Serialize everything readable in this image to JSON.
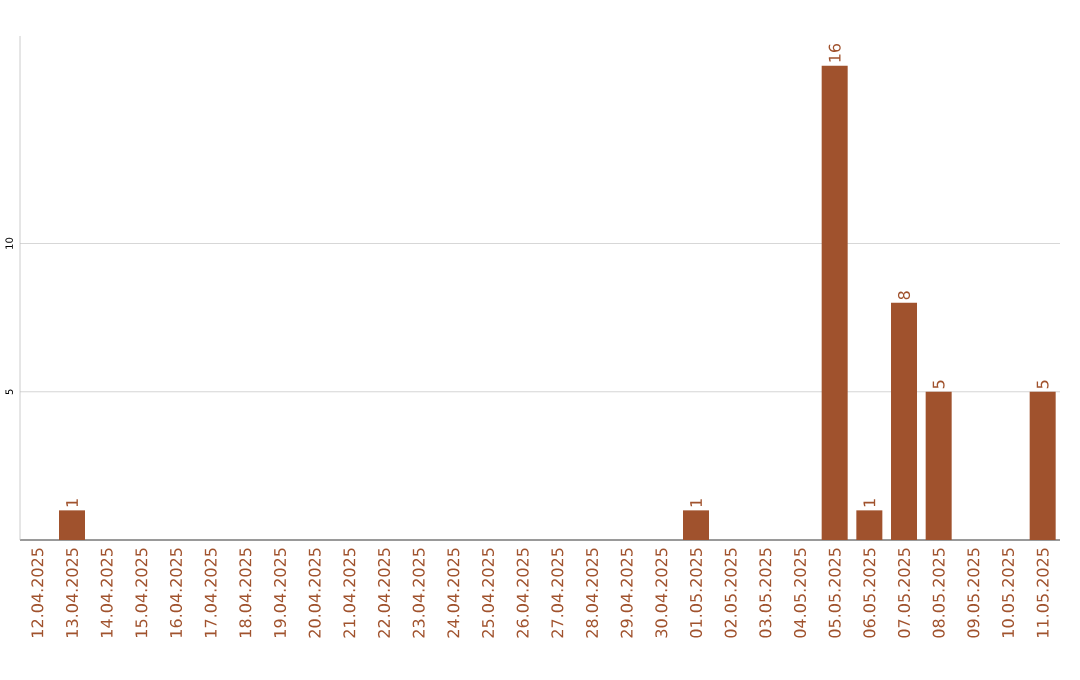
{
  "chart_data": {
    "type": "bar",
    "categories": [
      "12.04.2025",
      "13.04.2025",
      "14.04.2025",
      "15.04.2025",
      "16.04.2025",
      "17.04.2025",
      "18.04.2025",
      "19.04.2025",
      "20.04.2025",
      "21.04.2025",
      "22.04.2025",
      "23.04.2025",
      "24.04.2025",
      "25.04.2025",
      "26.04.2025",
      "27.04.2025",
      "28.04.2025",
      "29.04.2025",
      "30.04.2025",
      "01.05.2025",
      "02.05.2025",
      "03.05.2025",
      "04.05.2025",
      "05.05.2025",
      "06.05.2025",
      "07.05.2025",
      "08.05.2025",
      "09.05.2025",
      "10.05.2025",
      "11.05.2025"
    ],
    "values": [
      0,
      1,
      0,
      0,
      0,
      0,
      0,
      0,
      0,
      0,
      0,
      0,
      0,
      0,
      0,
      0,
      0,
      0,
      0,
      1,
      0,
      0,
      0,
      16,
      1,
      8,
      5,
      0,
      0,
      5
    ],
    "value_labels": [
      null,
      "1",
      null,
      null,
      null,
      null,
      null,
      null,
      null,
      null,
      null,
      null,
      null,
      null,
      null,
      null,
      null,
      null,
      null,
      "1",
      null,
      null,
      null,
      "16",
      "1",
      "8",
      "5",
      null,
      null,
      "5"
    ],
    "color": "#a0522d",
    "ylim": [
      0,
      17
    ],
    "yticks": [
      5,
      10
    ],
    "grid": "y"
  }
}
